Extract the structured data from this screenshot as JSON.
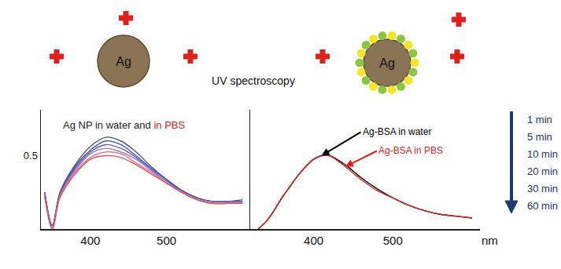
{
  "diagram": {
    "particles": [
      {
        "label": "Ag",
        "coating": false
      },
      {
        "label": "Ag",
        "coating": true
      }
    ],
    "caption": "UV spectroscopy"
  },
  "chart_data": [
    {
      "type": "line",
      "title_parts": [
        {
          "text": "Ag NP in water and",
          "color": "#222222"
        },
        {
          "text": "in PBS",
          "color": "#e0201b"
        }
      ],
      "x": [
        340,
        350,
        360,
        380,
        400,
        420,
        440,
        460,
        480,
        500,
        520,
        540,
        560,
        580,
        600
      ],
      "series": [
        {
          "name": "1 min",
          "color": "#555555",
          "values": [
            0.3,
            0.12,
            0.3,
            0.45,
            0.55,
            0.6,
            0.58,
            0.52,
            0.44,
            0.37,
            0.31,
            0.27,
            0.25,
            0.25,
            0.25
          ]
        },
        {
          "name": "5 min",
          "color": "#3355cc",
          "values": [
            0.3,
            0.12,
            0.29,
            0.44,
            0.53,
            0.58,
            0.56,
            0.5,
            0.43,
            0.37,
            0.31,
            0.27,
            0.25,
            0.25,
            0.26
          ]
        },
        {
          "name": "10 min",
          "color": "#6655aa",
          "values": [
            0.29,
            0.11,
            0.29,
            0.43,
            0.52,
            0.56,
            0.54,
            0.49,
            0.42,
            0.36,
            0.31,
            0.27,
            0.25,
            0.25,
            0.25
          ]
        },
        {
          "name": "20 min",
          "color": "#9977bb",
          "values": [
            0.29,
            0.11,
            0.28,
            0.42,
            0.51,
            0.54,
            0.52,
            0.48,
            0.42,
            0.36,
            0.3,
            0.26,
            0.24,
            0.24,
            0.24
          ]
        },
        {
          "name": "30 min",
          "color": "#cc7799",
          "values": [
            0.28,
            0.1,
            0.28,
            0.41,
            0.49,
            0.52,
            0.51,
            0.46,
            0.41,
            0.35,
            0.3,
            0.26,
            0.24,
            0.24,
            0.24
          ]
        },
        {
          "name": "60 min",
          "color": "#e05050",
          "values": [
            0.28,
            0.1,
            0.27,
            0.4,
            0.48,
            0.5,
            0.49,
            0.45,
            0.4,
            0.35,
            0.3,
            0.26,
            0.24,
            0.24,
            0.24
          ]
        }
      ],
      "xlim": [
        335,
        610
      ],
      "xticks": [
        400,
        500
      ],
      "ylim": [
        0.1,
        0.75
      ],
      "yticks": [
        0.5
      ],
      "legend": "right"
    },
    {
      "type": "line",
      "x": [
        330,
        340,
        350,
        360,
        370,
        380,
        390,
        400,
        410,
        420,
        440,
        460,
        480,
        500,
        520,
        540,
        560,
        580,
        600
      ],
      "series": [
        {
          "name": "Ag-BSA in water",
          "color": "#000000",
          "label_at": 410,
          "values": [
            0.1,
            0.14,
            0.2,
            0.27,
            0.33,
            0.39,
            0.44,
            0.48,
            0.5,
            0.5,
            0.45,
            0.38,
            0.32,
            0.27,
            0.23,
            0.2,
            0.18,
            0.17,
            0.16
          ]
        },
        {
          "name": "Ag-BSA in PBS",
          "color": "#e0201b",
          "label_at": 440,
          "values": [
            0.1,
            0.14,
            0.2,
            0.27,
            0.33,
            0.39,
            0.44,
            0.48,
            0.5,
            0.5,
            0.44,
            0.37,
            0.31,
            0.27,
            0.23,
            0.2,
            0.18,
            0.17,
            0.16
          ]
        }
      ],
      "xlim": [
        320,
        610
      ],
      "xticks": [
        400,
        500
      ],
      "ylim": [
        0.1,
        0.75
      ],
      "tick_labels": "x",
      "x_label": "nm"
    }
  ]
}
